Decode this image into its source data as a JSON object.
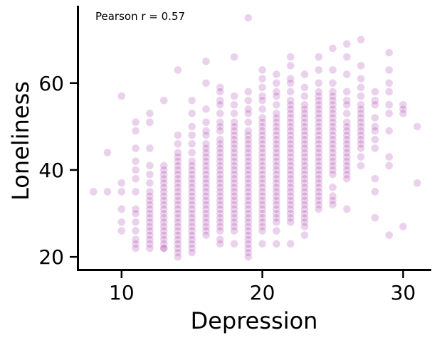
{
  "chart_data": {
    "type": "scatter",
    "title": "",
    "xlabel": "Depression",
    "ylabel": "Loneliness",
    "annotation": "Pearson r = 0.57",
    "xlim": [
      6.9,
      32.0
    ],
    "ylim": [
      17.0,
      77.8
    ],
    "xticks": [
      10,
      20,
      30
    ],
    "yticks": [
      20,
      40,
      60
    ],
    "grid": false,
    "legend": "none",
    "point_color": "#9b1fa0",
    "point_alpha": 0.2,
    "series": [
      {
        "x": [
          8,
          9,
          9,
          10,
          10,
          10,
          10,
          10,
          10,
          11,
          11,
          11,
          11,
          11,
          11,
          11,
          11,
          11,
          11,
          11,
          11,
          11,
          11,
          12,
          12,
          12,
          12,
          12,
          12,
          12,
          12,
          12,
          12,
          12,
          12,
          12,
          12,
          12,
          12,
          12,
          12,
          12,
          12,
          13,
          13,
          13,
          13,
          13,
          13,
          13,
          13,
          13,
          13,
          13,
          13,
          13,
          13,
          13,
          13,
          13,
          13,
          13,
          13,
          13,
          13,
          14,
          14,
          14,
          14,
          14,
          14,
          14,
          14,
          14,
          14,
          14,
          14,
          14,
          14,
          14,
          14,
          14,
          14,
          14,
          14,
          14,
          14,
          14,
          14,
          14,
          14,
          14,
          14,
          15,
          15,
          15,
          15,
          15,
          15,
          15,
          15,
          15,
          15,
          15,
          15,
          15,
          15,
          15,
          15,
          15,
          15,
          15,
          15,
          15,
          15,
          15,
          15,
          15,
          15,
          15,
          15,
          16,
          16,
          16,
          16,
          16,
          16,
          16,
          16,
          16,
          16,
          16,
          16,
          16,
          16,
          16,
          16,
          16,
          16,
          16,
          16,
          16,
          16,
          16,
          16,
          16,
          16,
          16,
          16,
          17,
          17,
          17,
          17,
          17,
          17,
          17,
          17,
          17,
          17,
          17,
          17,
          17,
          17,
          17,
          17,
          17,
          17,
          17,
          17,
          17,
          17,
          17,
          17,
          17,
          17,
          17,
          17,
          17,
          17,
          17,
          17,
          18,
          18,
          18,
          18,
          18,
          18,
          18,
          18,
          18,
          18,
          18,
          18,
          18,
          18,
          18,
          18,
          18,
          18,
          18,
          18,
          18,
          18,
          18,
          18,
          18,
          18,
          18,
          18,
          18,
          18,
          18,
          19,
          19,
          19,
          19,
          19,
          19,
          19,
          19,
          19,
          19,
          19,
          19,
          19,
          19,
          19,
          19,
          19,
          19,
          19,
          19,
          19,
          19,
          19,
          19,
          19,
          19,
          19,
          19,
          19,
          19,
          19,
          19,
          19,
          19,
          19,
          19,
          20,
          20,
          20,
          20,
          20,
          20,
          20,
          20,
          20,
          20,
          20,
          20,
          20,
          20,
          20,
          20,
          20,
          20,
          20,
          20,
          20,
          20,
          20,
          20,
          20,
          20,
          20,
          20,
          20,
          20,
          20,
          20,
          20,
          20,
          21,
          21,
          21,
          21,
          21,
          21,
          21,
          21,
          21,
          21,
          21,
          21,
          21,
          21,
          21,
          21,
          21,
          21,
          21,
          21,
          21,
          21,
          21,
          21,
          21,
          21,
          21,
          21,
          21,
          21,
          21,
          21,
          21,
          22,
          22,
          22,
          22,
          22,
          22,
          22,
          22,
          22,
          22,
          22,
          22,
          22,
          22,
          22,
          22,
          22,
          22,
          22,
          22,
          22,
          22,
          22,
          22,
          22,
          22,
          22,
          22,
          22,
          22,
          22,
          22,
          22,
          22,
          22,
          23,
          23,
          23,
          23,
          23,
          23,
          23,
          23,
          23,
          23,
          23,
          23,
          23,
          23,
          23,
          23,
          23,
          23,
          23,
          23,
          23,
          23,
          23,
          23,
          23,
          23,
          23,
          23,
          23,
          23,
          23,
          23,
          23,
          24,
          24,
          24,
          24,
          24,
          24,
          24,
          24,
          24,
          24,
          24,
          24,
          24,
          24,
          24,
          24,
          24,
          24,
          24,
          24,
          24,
          24,
          24,
          24,
          24,
          24,
          24,
          24,
          24,
          24,
          24,
          25,
          25,
          25,
          25,
          25,
          25,
          25,
          25,
          25,
          25,
          25,
          25,
          25,
          25,
          25,
          25,
          25,
          25,
          25,
          25,
          25,
          25,
          25,
          25,
          25,
          25,
          25,
          26,
          26,
          26,
          26,
          26,
          26,
          26,
          26,
          26,
          26,
          26,
          26,
          26,
          26,
          26,
          26,
          26,
          26,
          26,
          26,
          26,
          26,
          27,
          27,
          27,
          27,
          27,
          27,
          27,
          27,
          27,
          27,
          27,
          27,
          27,
          27,
          27,
          27,
          27,
          27,
          28,
          28,
          28,
          28,
          28,
          28,
          28,
          28,
          28,
          28,
          28,
          29,
          29,
          29,
          29,
          29,
          29,
          29,
          29,
          29,
          29,
          30,
          30,
          30,
          30,
          31,
          31
        ],
        "y": [
          35,
          35,
          44,
          57,
          37,
          35,
          31,
          28,
          26,
          51,
          49,
          45,
          42,
          40,
          38,
          35,
          31,
          30,
          28,
          26,
          24,
          23,
          22,
          53,
          51,
          45,
          41,
          39,
          37,
          35,
          34,
          33,
          32,
          31,
          30,
          29,
          28,
          27,
          26,
          25,
          24,
          23,
          22,
          56,
          41,
          40,
          39,
          38,
          37,
          36,
          35,
          34,
          33,
          32,
          31,
          30,
          29,
          28,
          27,
          26,
          25,
          24,
          23,
          22,
          22,
          63,
          48,
          46,
          44,
          43,
          42,
          41,
          40,
          39,
          38,
          37,
          36,
          35,
          34,
          33,
          32,
          31,
          30,
          29,
          28,
          27,
          26,
          25,
          24,
          23,
          22,
          21,
          20,
          56,
          53,
          50,
          48,
          46,
          44,
          42,
          41,
          40,
          39,
          38,
          37,
          36,
          35,
          34,
          33,
          32,
          31,
          30,
          29,
          28,
          27,
          26,
          25,
          24,
          23,
          22,
          21,
          65,
          60,
          54,
          51,
          49,
          48,
          46,
          45,
          44,
          43,
          42,
          41,
          40,
          39,
          38,
          37,
          36,
          35,
          34,
          33,
          32,
          31,
          30,
          29,
          28,
          27,
          26,
          25,
          59,
          58,
          56,
          55,
          53,
          51,
          50,
          49,
          47,
          46,
          45,
          44,
          43,
          42,
          41,
          40,
          39,
          38,
          37,
          36,
          35,
          34,
          33,
          32,
          31,
          30,
          29,
          28,
          27,
          26,
          24,
          23,
          66,
          57,
          55,
          53,
          51,
          50,
          49,
          48,
          47,
          46,
          45,
          44,
          43,
          42,
          41,
          40,
          39,
          38,
          37,
          36,
          35,
          34,
          33,
          32,
          31,
          30,
          29,
          28,
          27,
          26,
          23,
          75,
          58,
          56,
          54,
          53,
          51,
          49,
          48,
          47,
          46,
          45,
          44,
          43,
          42,
          41,
          40,
          39,
          38,
          37,
          36,
          35,
          34,
          33,
          32,
          31,
          30,
          29,
          28,
          27,
          26,
          25,
          24,
          23,
          22,
          21,
          20,
          63,
          61,
          59,
          57,
          56,
          54,
          52,
          51,
          50,
          49,
          48,
          47,
          46,
          45,
          44,
          43,
          42,
          41,
          40,
          39,
          38,
          37,
          36,
          35,
          34,
          33,
          32,
          31,
          30,
          29,
          28,
          27,
          26,
          23,
          62,
          60,
          58,
          57,
          55,
          53,
          52,
          51,
          50,
          49,
          48,
          47,
          46,
          45,
          44,
          43,
          42,
          41,
          40,
          39,
          38,
          37,
          36,
          35,
          34,
          33,
          32,
          31,
          30,
          29,
          28,
          26,
          23,
          66,
          64,
          61,
          60,
          58,
          56,
          55,
          54,
          53,
          52,
          51,
          50,
          49,
          48,
          47,
          46,
          45,
          44,
          43,
          42,
          41,
          40,
          39,
          38,
          37,
          36,
          35,
          34,
          33,
          32,
          31,
          30,
          29,
          28,
          23,
          62,
          59,
          57,
          55,
          54,
          53,
          52,
          51,
          50,
          49,
          48,
          47,
          46,
          45,
          44,
          43,
          42,
          41,
          40,
          39,
          38,
          37,
          36,
          35,
          34,
          33,
          32,
          31,
          30,
          29,
          28,
          27,
          25,
          66,
          63,
          60,
          58,
          57,
          56,
          55,
          54,
          53,
          52,
          51,
          50,
          49,
          48,
          47,
          46,
          45,
          44,
          43,
          42,
          41,
          40,
          39,
          38,
          37,
          36,
          35,
          34,
          33,
          32,
          31,
          68,
          63,
          60,
          58,
          57,
          56,
          55,
          54,
          53,
          52,
          51,
          50,
          49,
          48,
          47,
          46,
          45,
          44,
          43,
          42,
          41,
          40,
          39,
          36,
          34,
          33,
          32,
          69,
          66,
          62,
          58,
          56,
          55,
          53,
          51,
          50,
          49,
          48,
          47,
          46,
          45,
          44,
          43,
          42,
          41,
          40,
          39,
          38,
          31,
          70,
          64,
          61,
          59,
          57,
          55,
          54,
          53,
          52,
          51,
          50,
          49,
          48,
          47,
          46,
          45,
          43,
          41,
          58,
          56,
          55,
          52,
          50,
          49,
          47,
          45,
          38,
          35,
          29,
          67,
          63,
          60,
          58,
          55,
          53,
          49,
          43,
          41,
          25,
          55,
          54,
          53,
          27,
          50,
          37
        ]
      }
    ]
  }
}
